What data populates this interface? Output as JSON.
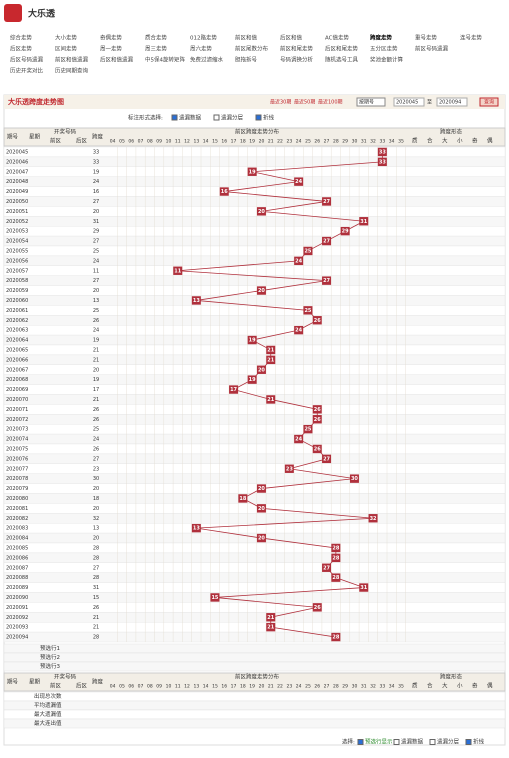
{
  "header": {
    "title": "大乐透"
  },
  "nav": [
    "综合走势",
    "大小走势",
    "奇偶走势",
    "质合走势",
    "012路走势",
    "前区和值",
    "后区和值",
    "AC值走势",
    "跨度走势",
    "重号走势",
    "连号走势",
    "后区走势",
    "区间走势",
    "周一走势",
    "周三走势",
    "周六走势",
    "前区尾数分布",
    "前区和尾走势",
    "后区和尾走势",
    "五分区走势",
    "前区号码遗漏",
    "后区号码遗漏",
    "前区和值遗漏",
    "后区和值遗漏",
    "中5保4旋转矩阵",
    "免费过滤缩水",
    "胆拖拆号",
    "号码调换分析",
    "随机选号工具",
    "奖池金额计算",
    "历史开奖对比",
    "历史同期查询"
  ],
  "panel": {
    "title": "大乐透跨度走势图",
    "periods": [
      "最近30期",
      "最近50期",
      "最近100期"
    ],
    "select": "按期号",
    "from": "2020045",
    "to_label": "至",
    "to": "2020094",
    "button": "查询",
    "mark_label": "标注形式选择:",
    "options": [
      "遗漏数据",
      "遗漏分层",
      "折线"
    ]
  },
  "table": {
    "issue": "期号",
    "week": "星期",
    "draw": "开奖号码",
    "front": "前区",
    "back": "后区",
    "span": "跨度",
    "chart": "前区跨度走势分布",
    "shape": "跨度形态",
    "shape_cols": [
      "质",
      "合",
      "大",
      "小",
      "奇",
      "偶"
    ],
    "preselect": [
      "预选行1",
      "预选行2",
      "预选行3"
    ],
    "stats": [
      "出现总次数",
      "平均遗漏值",
      "最大遗漏值",
      "最大连出值"
    ]
  },
  "footer": {
    "select": "选择:",
    "options": [
      "预选行显示",
      "遗漏数据",
      "遗漏分层",
      "折线"
    ]
  },
  "chart_data": {
    "type": "line",
    "color": "#b0303c",
    "categories": [
      "2020045",
      "2020046",
      "2020047",
      "2020048",
      "2020049",
      "2020050",
      "2020051",
      "2020052",
      "2020053",
      "2020054",
      "2020055",
      "2020056",
      "2020057",
      "2020058",
      "2020059",
      "2020060",
      "2020061",
      "2020062",
      "2020063",
      "2020064",
      "2020065",
      "2020066",
      "2020067",
      "2020068",
      "2020069",
      "2020070",
      "2020071",
      "2020072",
      "2020073",
      "2020074",
      "2020075",
      "2020076",
      "2020077",
      "2020078",
      "2020079",
      "2020080",
      "2020081",
      "2020082",
      "2020083",
      "2020084",
      "2020085",
      "2020086",
      "2020087",
      "2020088",
      "2020089",
      "2020090",
      "2020091",
      "2020092",
      "2020093",
      "2020094"
    ],
    "values": [
      33,
      33,
      19,
      24,
      16,
      27,
      20,
      31,
      29,
      27,
      25,
      24,
      11,
      27,
      20,
      13,
      25,
      26,
      24,
      19,
      21,
      21,
      20,
      19,
      17,
      21,
      26,
      26,
      25,
      24,
      26,
      27,
      23,
      30,
      20,
      18,
      20,
      32,
      13,
      20,
      28,
      28,
      27,
      28,
      31,
      15,
      26,
      21,
      21,
      28
    ],
    "xlim": [
      4,
      35
    ],
    "xticks": [
      {
        "value": 4,
        "label": "04"
      },
      {
        "value": 5,
        "label": "05"
      },
      {
        "value": 6,
        "label": "06"
      },
      {
        "value": 7,
        "label": "07"
      },
      {
        "value": 8,
        "label": "08"
      },
      {
        "value": 9,
        "label": "09"
      },
      10,
      11,
      12,
      13,
      14,
      15,
      16,
      17,
      18,
      19,
      20,
      21,
      22,
      23,
      24,
      25,
      26,
      27,
      28,
      29,
      30,
      31,
      32,
      33,
      34,
      35
    ]
  }
}
